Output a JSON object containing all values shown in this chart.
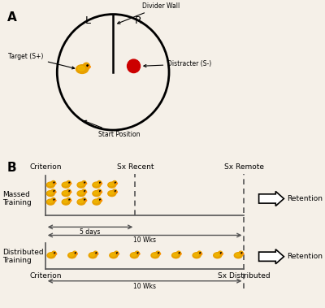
{
  "bg_color": "#f5f0e8",
  "panel_a_label": "A",
  "panel_b_label": "B",
  "divider_wall_label": "Divider Wall",
  "L_label": "L",
  "R_label": "R",
  "target_label": "Target (S+)",
  "distracter_label": "Distracter (S-)",
  "start_label": "Start Position",
  "massed_label": "Massed\nTraining",
  "distributed_label": "Distributed\nTraining",
  "criterion_top": "Criterion",
  "criterion_bottom": "Criterion",
  "sx_recent": "Sx Recent",
  "sx_remote": "Sx Remote",
  "sx_distributed": "Sx Distributed",
  "five_days": "5 days",
  "ten_wks_1": "10 Wks",
  "ten_wks_2": "10 Wks",
  "retention": "Retention",
  "line_color": "#555555",
  "duck_body_color": "#E8A000",
  "duck_wing_color": "#F0B800",
  "duck_bill_color": "#FF8C00",
  "red_circle_color": "#CC0000"
}
